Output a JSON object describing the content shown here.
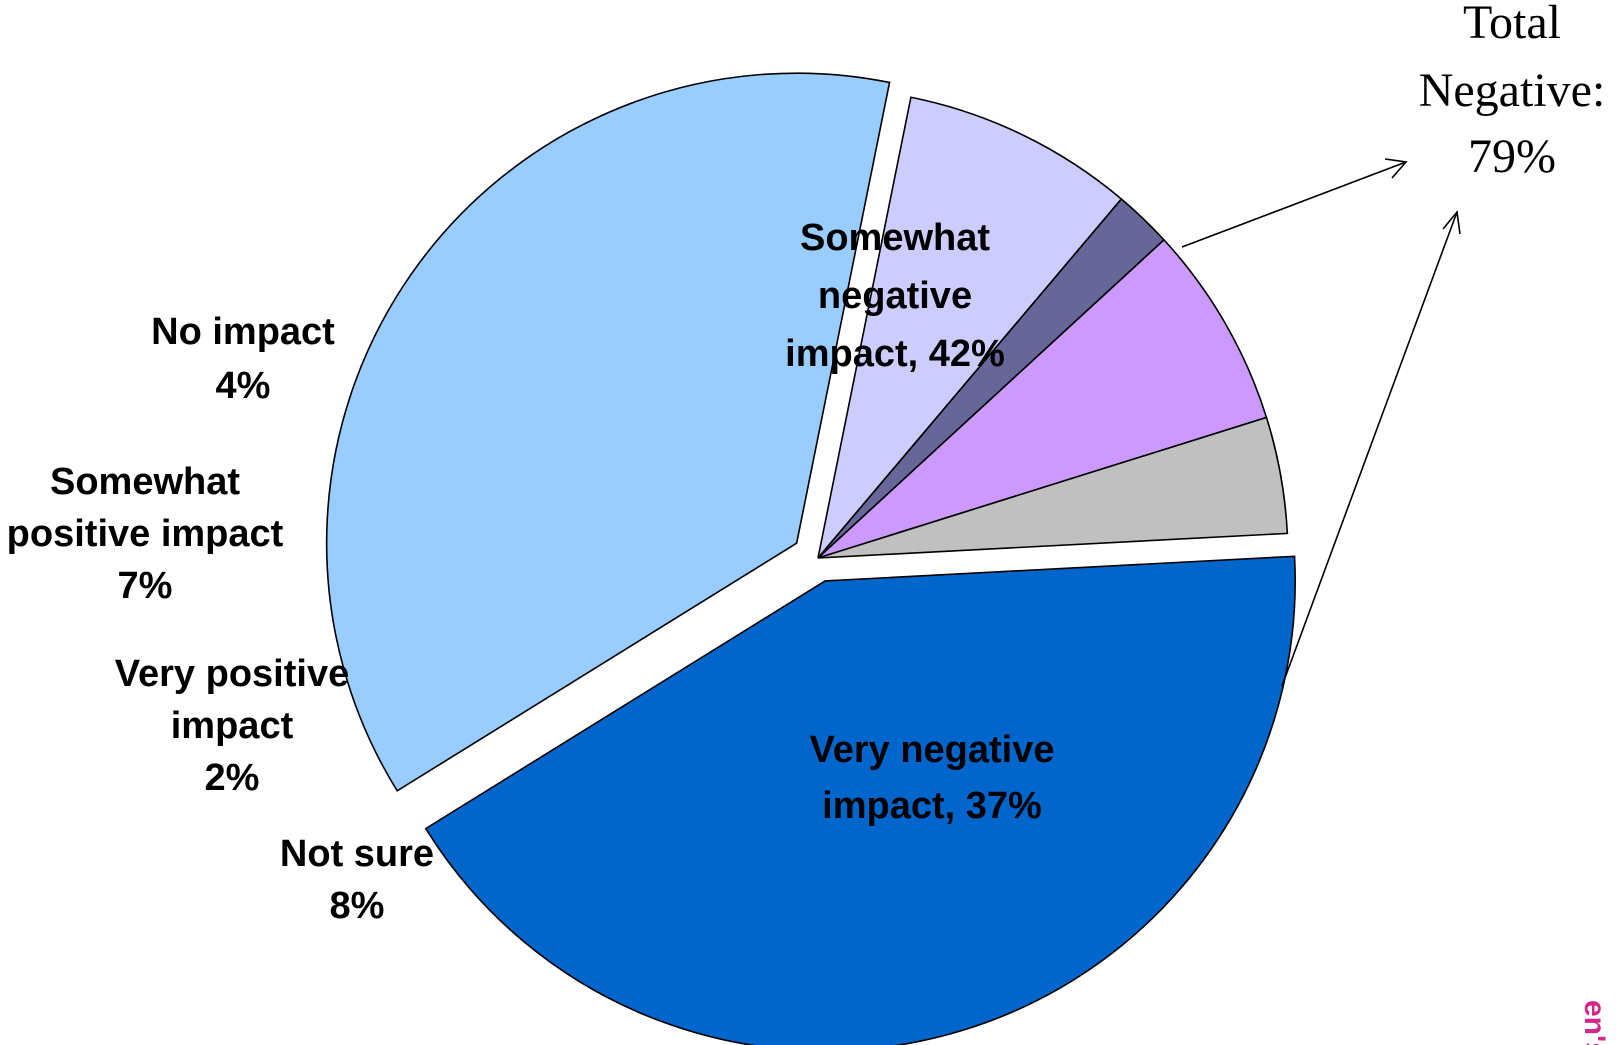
{
  "chart_data": {
    "type": "pie",
    "slices": [
      {
        "label_lines": [
          "Somewhat",
          "negative",
          "impact, 42%"
        ],
        "value": 42,
        "color": "#0066CC"
      },
      {
        "label_lines": [
          "Very negative",
          "impact, 37%"
        ],
        "value": 37,
        "color": "#99CCFF"
      },
      {
        "label_lines": [
          "Not sure",
          "8%"
        ],
        "value": 8,
        "color": "#CCCCFF"
      },
      {
        "label_lines": [
          "Very positive",
          "impact",
          "2%"
        ],
        "value": 2,
        "color": "#666699"
      },
      {
        "label_lines": [
          "Somewhat",
          "positive impact",
          "7%"
        ],
        "value": 7,
        "color": "#CC99FF"
      },
      {
        "label_lines": [
          "No impact",
          "4%"
        ],
        "value": 4,
        "color": "#C0C0C0"
      }
    ],
    "callout": {
      "lines": [
        "Total",
        "Negative:",
        "79%"
      ]
    }
  },
  "corner_text": "en's"
}
